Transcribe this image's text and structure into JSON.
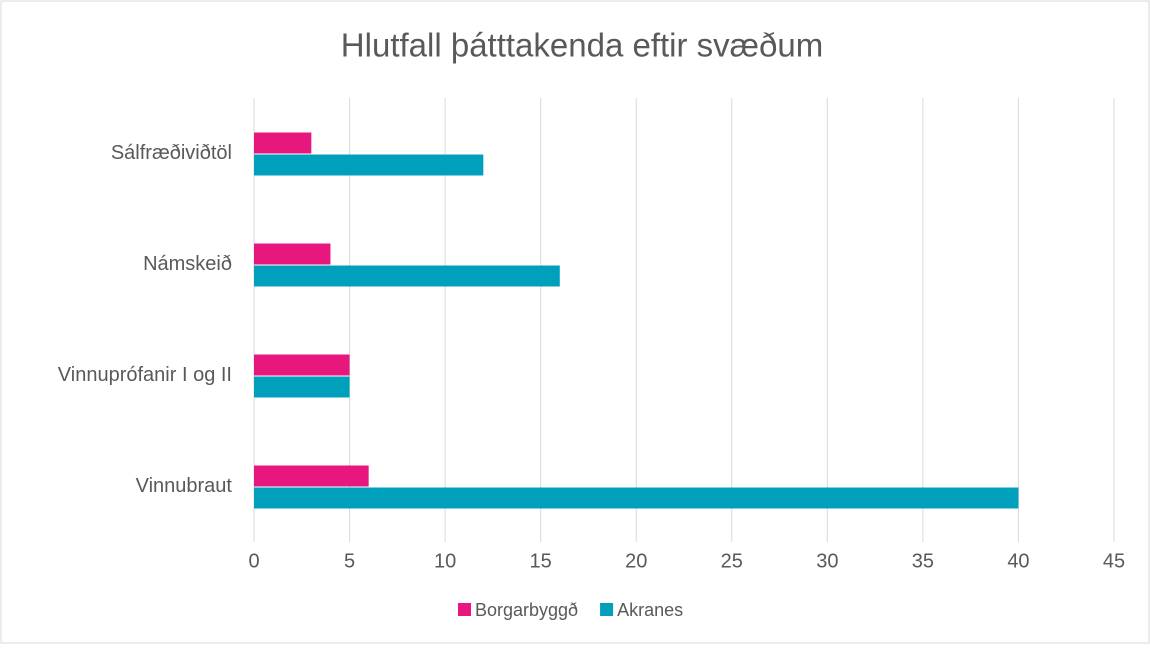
{
  "chart_data": {
    "type": "bar",
    "orientation": "horizontal",
    "title": "Hlutfall þátttakenda eftir svæðum",
    "categories": [
      "Sálfræðiviðtöl",
      "Námskeið",
      "Vinnuprófanir I og II",
      "Vinnubraut"
    ],
    "series": [
      {
        "name": "Borgarbyggð",
        "color": "#e8177d",
        "values": [
          3,
          4,
          5,
          6
        ]
      },
      {
        "name": "Akranes",
        "color": "#00a0bc",
        "values": [
          12,
          16,
          5,
          40
        ]
      }
    ],
    "xlim": [
      0,
      45
    ],
    "xticks": [
      0,
      5,
      10,
      15,
      20,
      25,
      30,
      35,
      40,
      45
    ],
    "grid": true,
    "legend": "bottom"
  }
}
